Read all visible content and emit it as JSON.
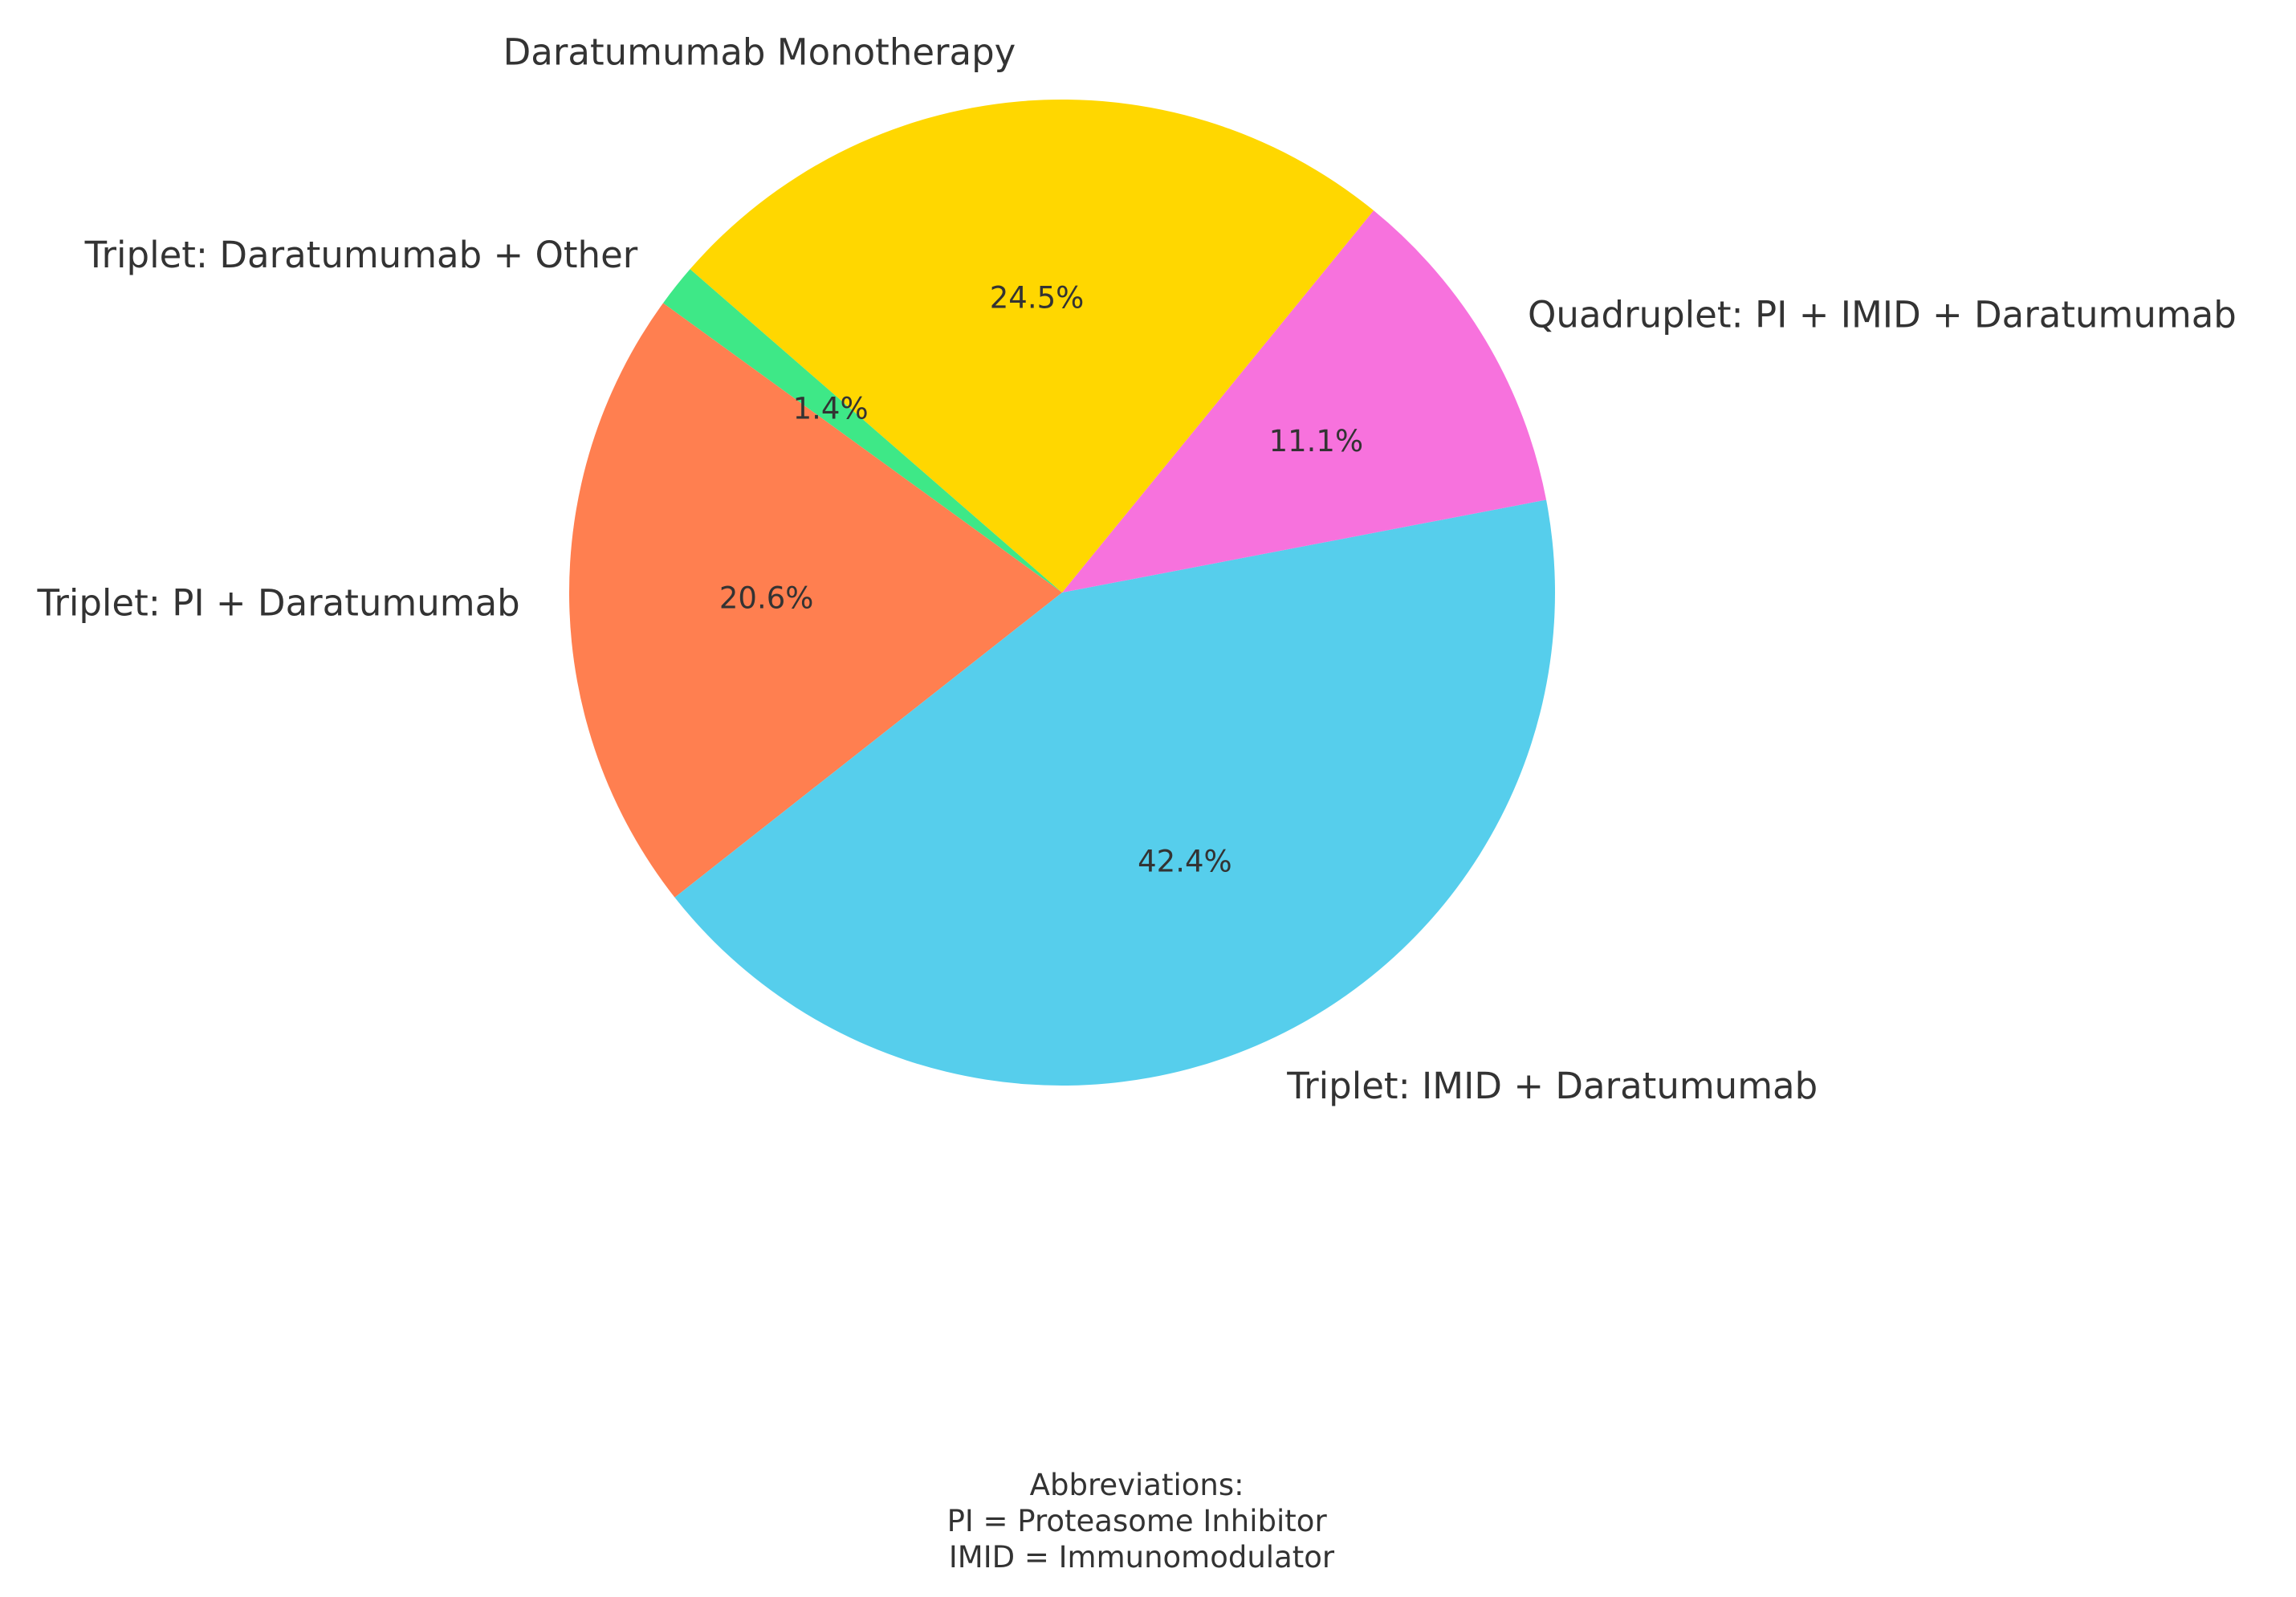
{
  "chart_data": {
    "type": "pie",
    "title": "",
    "start_angle_deg": 139,
    "direction": "counterclockwise",
    "slices": [
      {
        "label": "Triplet: Daratumumab + Other",
        "value": 1.4,
        "pct_label": "1.4%",
        "color": "#3EE887"
      },
      {
        "label": "Triplet: PI + Daratumumab",
        "value": 20.6,
        "pct_label": "20.6%",
        "color": "#FF7F50"
      },
      {
        "label": "Triplet: IMID + Daratumumab",
        "value": 42.4,
        "pct_label": "42.4%",
        "color": "#56CEEC"
      },
      {
        "label": "Quadruplet: PI + IMID + Daratumumab",
        "value": 11.1,
        "pct_label": "11.1%",
        "color": "#F772DD"
      },
      {
        "label": "Daratumumab Monotherapy",
        "value": 24.5,
        "pct_label": "24.5%",
        "color": "#FFD700"
      }
    ]
  },
  "footnote": {
    "lines": [
      "Abbreviations:",
      "PI = Proteasome Inhibitor",
      "IMID = Immunomodulator"
    ]
  }
}
